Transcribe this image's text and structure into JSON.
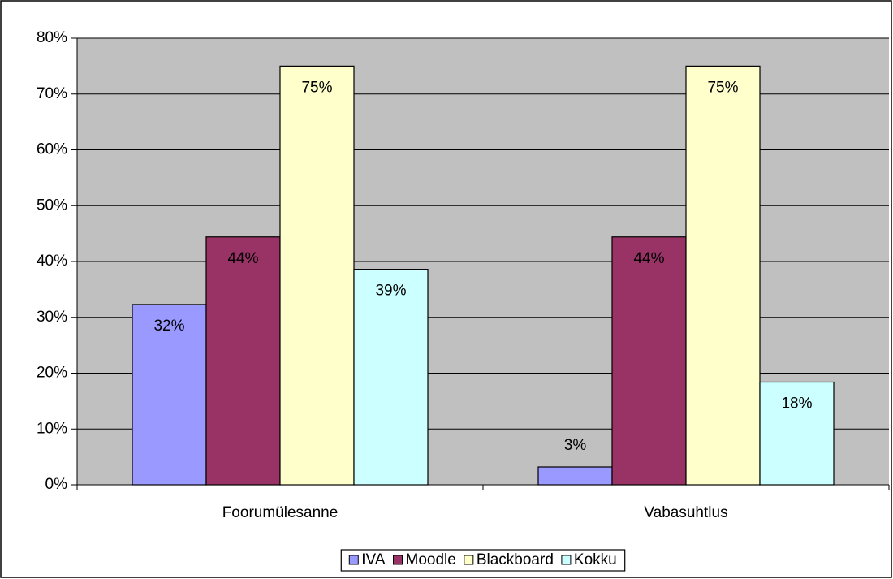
{
  "chart_data": {
    "type": "bar",
    "categories": [
      "Foorumülesanne",
      "Vabasuhtlus"
    ],
    "series": [
      {
        "name": "IVA",
        "color": "#9999ff",
        "values": [
          32.3,
          3.2
        ],
        "value_labels": [
          "32%",
          "3%"
        ]
      },
      {
        "name": "Moodle",
        "color": "#993366",
        "values": [
          44.4,
          44.4
        ],
        "value_labels": [
          "44%",
          "44%"
        ]
      },
      {
        "name": "Blackboard",
        "color": "#ffffcc",
        "values": [
          75,
          75
        ],
        "value_labels": [
          "75%",
          "75%"
        ]
      },
      {
        "name": "Kokku",
        "color": "#ccffff",
        "values": [
          38.6,
          18.4
        ],
        "value_labels": [
          "39%",
          "18%"
        ]
      }
    ],
    "ylim": [
      0,
      80
    ],
    "yticks": [
      {
        "value": 0,
        "label": "0%"
      },
      {
        "value": 10,
        "label": "10%"
      },
      {
        "value": 20,
        "label": "20%"
      },
      {
        "value": 30,
        "label": "30%"
      },
      {
        "value": 40,
        "label": "40%"
      },
      {
        "value": 50,
        "label": "50%"
      },
      {
        "value": 60,
        "label": "60%"
      },
      {
        "value": 70,
        "label": "70%"
      },
      {
        "value": 80,
        "label": "80%"
      }
    ],
    "grid": true,
    "legend": "bottom",
    "plot_background": "#c0c0c0"
  }
}
